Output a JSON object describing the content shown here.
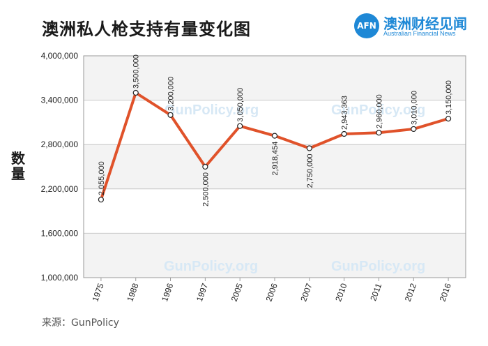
{
  "header": {
    "title": "澳洲私人枪支持有量变化图"
  },
  "brand": {
    "logo": "AFN",
    "name_cn": "澳洲财经见闻",
    "name_en": "Australian Financial News"
  },
  "footer": {
    "source": "来源：GunPolicy"
  },
  "watermark": "GunPolicy.org",
  "chart_data": {
    "type": "line",
    "title": "澳洲私人枪支持有量变化图",
    "xlabel": "",
    "ylabel": "数量",
    "categories": [
      "1975",
      "1988",
      "1996",
      "1997",
      "2005",
      "2006",
      "2007",
      "2010",
      "2011",
      "2012",
      "2016"
    ],
    "values": [
      2055000,
      3500000,
      3200000,
      2500000,
      3050000,
      2918454,
      2750000,
      2943363,
      2960000,
      3010000,
      3150000
    ],
    "data_labels": [
      "2,055,000",
      "3,500,000",
      "3,200,000",
      "2,500,000",
      "3,050,000",
      "2,918,454",
      "2,750,000",
      "2,943,363",
      "2,960,000",
      "3,010,000",
      "3,150,000"
    ],
    "yticks": [
      1000000,
      1600000,
      2200000,
      2800000,
      3400000,
      4000000
    ],
    "ytick_labels": [
      "1,000,000",
      "1,600,000",
      "2,200,000",
      "2,800,000",
      "3,400,000",
      "4,000,000"
    ],
    "ylim": [
      1000000,
      4000000
    ],
    "grid": true,
    "line_color": "#e0522a"
  }
}
